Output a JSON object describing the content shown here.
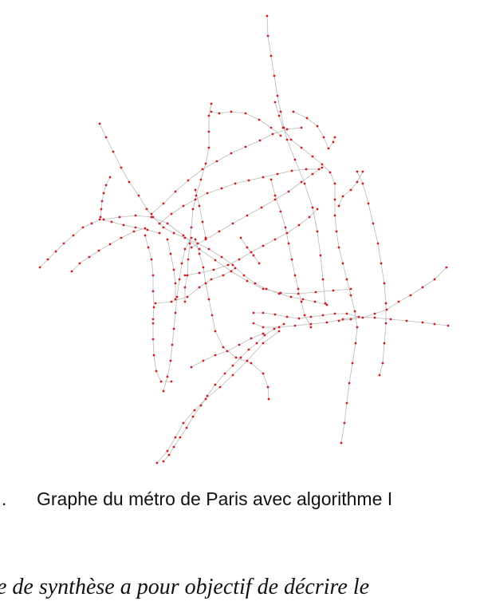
{
  "figure": {
    "caption_number": ".",
    "caption_text": "Graphe du métro de Paris avec algorithme I"
  },
  "body_text": "e de synthèse a pour objectif de décrire le",
  "colors": {
    "node": "#d6151c",
    "edge": "#b8b8b8",
    "text": "#111111"
  }
}
